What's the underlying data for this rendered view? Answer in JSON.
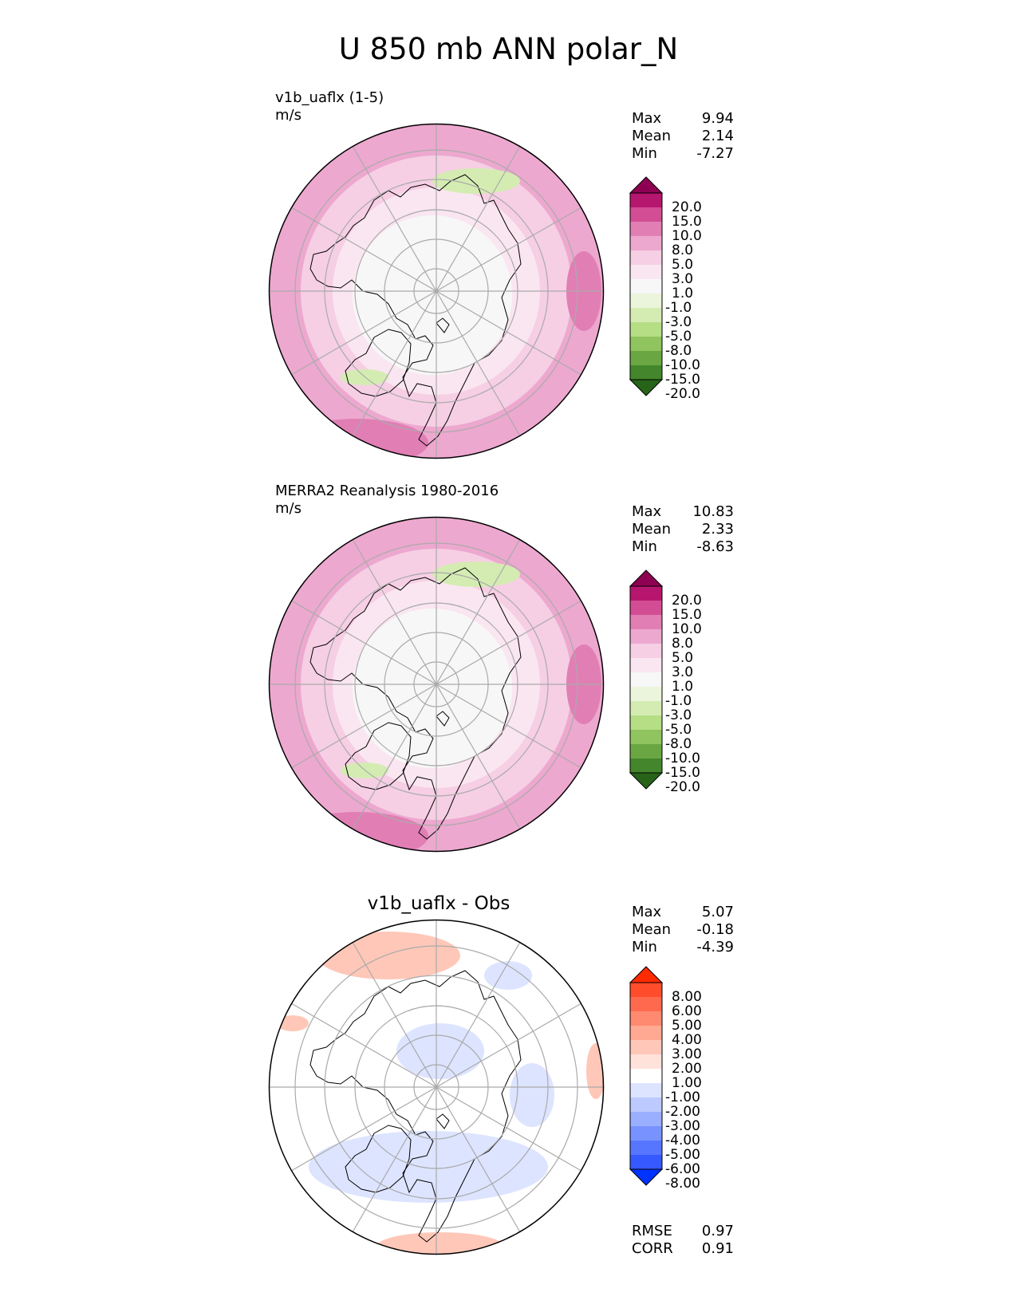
{
  "title": "U 850 mb ANN polar_N",
  "panels": [
    {
      "label": "v1b_uaflx (1-5)",
      "units": "m/s",
      "stats": [
        {
          "name": "Max",
          "value": "9.94"
        },
        {
          "name": "Mean",
          "value": "2.14"
        },
        {
          "name": "Min",
          "value": "-7.27"
        }
      ],
      "colorbar": {
        "labels": [
          "20.0",
          "15.0",
          "10.0",
          "8.0",
          "5.0",
          "3.0",
          "1.0",
          "-1.0",
          "-3.0",
          "-5.0",
          "-8.0",
          "-10.0",
          "-15.0",
          "-20.0"
        ],
        "colors": [
          "#8e0152",
          "#b7166f",
          "#d24d93",
          "#e17fb5",
          "#eda8cf",
          "#f6cfe4",
          "#fae6f0",
          "#f7f7f7",
          "#ebf5dc",
          "#d4ecb2",
          "#b5de85",
          "#8fc45e",
          "#6aa642",
          "#44862b",
          "#276419"
        ]
      }
    },
    {
      "label": "MERRA2 Reanalysis 1980-2016",
      "units": "m/s",
      "stats": [
        {
          "name": "Max",
          "value": "10.83"
        },
        {
          "name": "Mean",
          "value": "2.33"
        },
        {
          "name": "Min",
          "value": "-8.63"
        }
      ],
      "colorbar": {
        "labels": [
          "20.0",
          "15.0",
          "10.0",
          "8.0",
          "5.0",
          "3.0",
          "1.0",
          "-1.0",
          "-3.0",
          "-5.0",
          "-8.0",
          "-10.0",
          "-15.0",
          "-20.0"
        ],
        "colors": [
          "#8e0152",
          "#b7166f",
          "#d24d93",
          "#e17fb5",
          "#eda8cf",
          "#f6cfe4",
          "#fae6f0",
          "#f7f7f7",
          "#ebf5dc",
          "#d4ecb2",
          "#b5de85",
          "#8fc45e",
          "#6aa642",
          "#44862b",
          "#276419"
        ]
      }
    },
    {
      "label": "v1b_uaflx - Obs",
      "stats": [
        {
          "name": "Max",
          "value": "5.07"
        },
        {
          "name": "Mean",
          "value": "-0.18"
        },
        {
          "name": "Min",
          "value": "-4.39"
        }
      ],
      "colorbar": {
        "labels": [
          "8.00",
          "6.00",
          "5.00",
          "4.00",
          "3.00",
          "2.00",
          "1.00",
          "-1.00",
          "-2.00",
          "-3.00",
          "-4.00",
          "-5.00",
          "-6.00",
          "-8.00"
        ],
        "colors": [
          "#ff2a00",
          "#ff4d2b",
          "#ff6a4f",
          "#ff8a70",
          "#ffa993",
          "#ffc7b8",
          "#ffe2da",
          "#ffffff",
          "#dde4ff",
          "#bccaff",
          "#9aafff",
          "#7893ff",
          "#5776ff",
          "#3558ff",
          "#0033ff"
        ]
      },
      "metrics": [
        {
          "name": "RMSE",
          "value": "0.97"
        },
        {
          "name": "CORR",
          "value": "0.91"
        }
      ]
    }
  ],
  "map_colors": {
    "panel1": {
      "outer": "#eda8cf",
      "mid": "#f6cfe4",
      "inner": "#fae6f0",
      "core": "#f7f7f7",
      "accent": "#e17fb5",
      "green": "#d4ecb2"
    },
    "panel2": {
      "outer": "#eda8cf",
      "mid": "#f6cfe4",
      "inner": "#fae6f0",
      "core": "#f7f7f7",
      "accent": "#e17fb5",
      "green": "#d4ecb2"
    },
    "panel3": {
      "outer": "#ffffff",
      "mid": "#ffffff",
      "inner": "#ffffff",
      "core": "#ffffff",
      "red": "#ffc7b8",
      "blue": "#dde4ff"
    }
  }
}
